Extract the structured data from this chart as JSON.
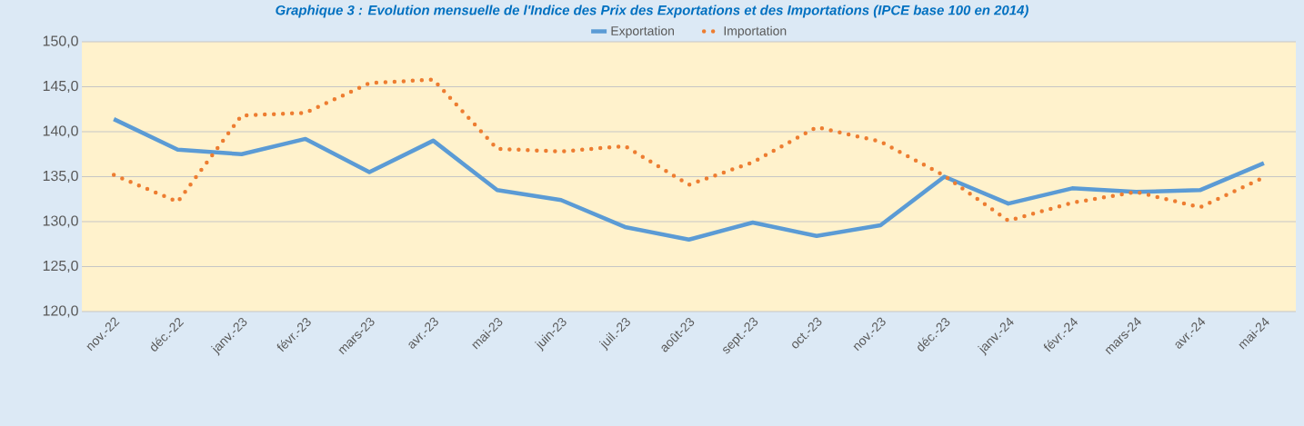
{
  "chart_data": {
    "type": "line",
    "title": "Graphique 3 : Evolution mensuelle de l'Indice des Prix des Exportations et des Importations (IPCE base 100 en 2014)",
    "categories": [
      "nov.-22",
      "déc.-22",
      "janv.-23",
      "févr.-23",
      "mars-23",
      "avr.-23",
      "mai-23",
      "juin-23",
      "juil.-23",
      "août-23",
      "sept.-23",
      "oct.-23",
      "nov.-23",
      "déc.-23",
      "janv.-24",
      "févr.-24",
      "mars-24",
      "avr.-24",
      "mai-24"
    ],
    "series": [
      {
        "name": "Exportation",
        "color": "#5b9bd5",
        "line_style": "solid",
        "values": [
          141.4,
          138.0,
          137.5,
          139.2,
          135.5,
          139.0,
          133.5,
          132.4,
          129.4,
          128.0,
          129.9,
          128.4,
          129.6,
          135.0,
          132.0,
          133.7,
          133.3,
          133.5,
          136.5
        ]
      },
      {
        "name": "Importation",
        "color": "#ed7d31",
        "line_style": "dotted",
        "values": [
          135.2,
          132.2,
          141.8,
          142.1,
          145.4,
          145.8,
          138.1,
          137.8,
          138.4,
          134.1,
          136.6,
          140.5,
          138.9,
          135.1,
          130.1,
          132.1,
          133.3,
          131.6,
          134.9
        ]
      }
    ],
    "ylim": [
      120,
      150
    ],
    "yticks": [
      {
        "value": 120,
        "label": "120,0"
      },
      {
        "value": 125,
        "label": "125,0"
      },
      {
        "value": 130,
        "label": "130,0"
      },
      {
        "value": 135,
        "label": "135,0"
      },
      {
        "value": 140,
        "label": "140,0"
      },
      {
        "value": 145,
        "label": "145,0"
      },
      {
        "value": 150,
        "label": "150,0"
      }
    ],
    "grid": "y",
    "legend": "top",
    "marker": "none"
  }
}
